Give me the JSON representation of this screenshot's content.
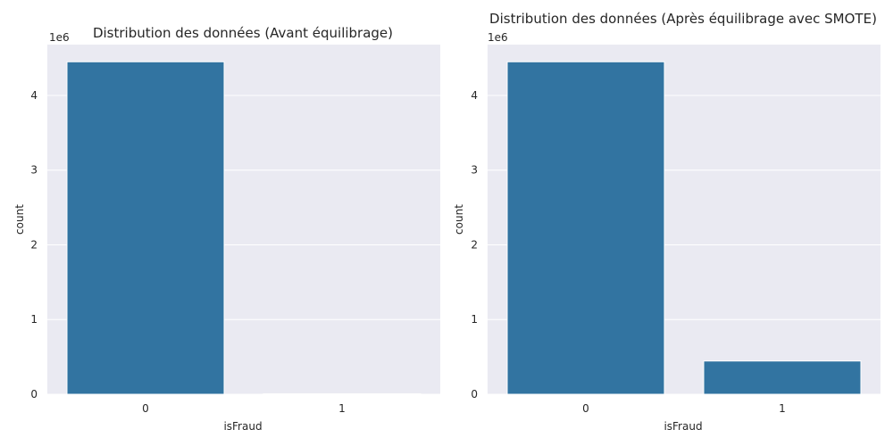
{
  "chart_data": [
    {
      "type": "bar",
      "title": "Distribution des données (Avant équilibrage)",
      "xlabel": "isFraud",
      "ylabel": "count",
      "y_offset_label": "1e6",
      "categories": [
        "0",
        "1"
      ],
      "values": [
        4450000,
        6000
      ],
      "ylim": [
        0,
        4680000
      ],
      "yticks": [
        0,
        1000000,
        2000000,
        3000000,
        4000000
      ],
      "ytick_labels": [
        "0",
        "1",
        "2",
        "3",
        "4"
      ],
      "grid": true,
      "bar_color": "#3274a1",
      "background_color": "#eaeaf2"
    },
    {
      "type": "bar",
      "title": "Distribution des données (Après équilibrage avec SMOTE)",
      "xlabel": "isFraud",
      "ylabel": "count",
      "y_offset_label": "1e6",
      "categories": [
        "0",
        "1"
      ],
      "values": [
        4450000,
        445000
      ],
      "ylim": [
        0,
        4680000
      ],
      "yticks": [
        0,
        1000000,
        2000000,
        3000000,
        4000000
      ],
      "ytick_labels": [
        "0",
        "1",
        "2",
        "3",
        "4"
      ],
      "grid": true,
      "bar_color": "#3274a1",
      "background_color": "#eaeaf2"
    }
  ]
}
